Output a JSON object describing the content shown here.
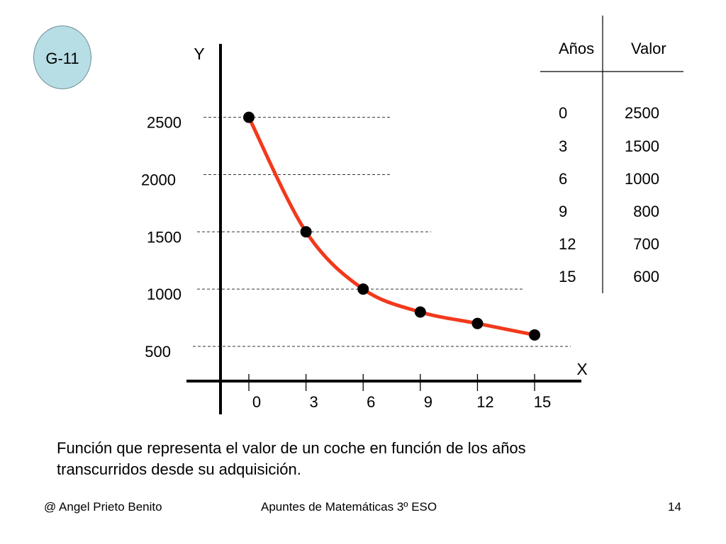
{
  "badge": {
    "label": "G-11"
  },
  "chart_data": {
    "type": "line",
    "title": "",
    "xlabel": "X",
    "ylabel": "Y",
    "x": [
      0,
      3,
      6,
      9,
      12,
      15
    ],
    "series": [
      {
        "values": [
          2500,
          1500,
          1000,
          800,
          700,
          600
        ]
      }
    ],
    "x_ticks": [
      "0",
      "3",
      "6",
      "9",
      "12",
      "15"
    ],
    "y_ticks": [
      {
        "value": 2500,
        "label": "2500"
      },
      {
        "value": 2000,
        "label": "2000"
      },
      {
        "value": 1500,
        "label": "1500"
      },
      {
        "value": 1000,
        "label": "1000"
      },
      {
        "value": 500,
        "label": "500"
      }
    ],
    "xlim": [
      -2,
      16
    ],
    "ylim": [
      200,
      2800
    ],
    "grid": "dashed horizontal reference lines",
    "colors": {
      "curve": "#f2391c",
      "points": "#000000",
      "axes": "#000000"
    }
  },
  "table": {
    "headers": [
      "Años",
      "Valor"
    ],
    "rows": [
      [
        "0",
        "2500"
      ],
      [
        "3",
        "1500"
      ],
      [
        "6",
        "1000"
      ],
      [
        "9",
        "800"
      ],
      [
        "12",
        "700"
      ],
      [
        "15",
        "600"
      ]
    ]
  },
  "caption": {
    "line1": "Función que representa el valor de un coche en función de los años",
    "line2": "transcurridos desde su adquisición."
  },
  "footer": {
    "author": "@ Angel Prieto Benito",
    "course": "Apuntes de Matemáticas 3º ESO",
    "page": "14"
  }
}
